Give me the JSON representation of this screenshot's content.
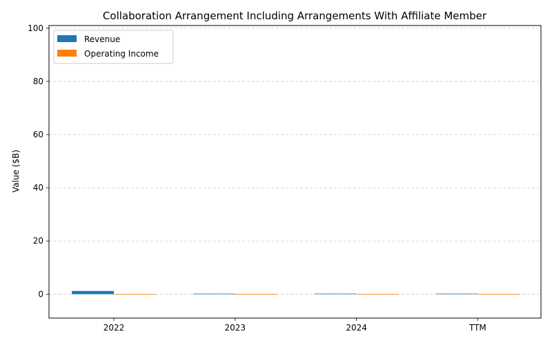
{
  "chart_data": {
    "type": "bar",
    "title": "Collaboration Arrangement Including Arrangements With Affiliate Member",
    "xlabel": "",
    "ylabel": "Value ($B)",
    "categories": [
      "2022",
      "2023",
      "2024",
      "TTM"
    ],
    "series": [
      {
        "name": "Revenue",
        "values": [
          1.2,
          0.2,
          0.2,
          0.2
        ],
        "color": "#1f77b4"
      },
      {
        "name": "Operating Income",
        "values": [
          0,
          0,
          0,
          0
        ],
        "color": "#ff7f0e"
      }
    ],
    "ylim": [
      -9,
      101
    ],
    "yticks": [
      0,
      20,
      40,
      60,
      80,
      100
    ],
    "grid": true,
    "legend_position": "top-left"
  }
}
